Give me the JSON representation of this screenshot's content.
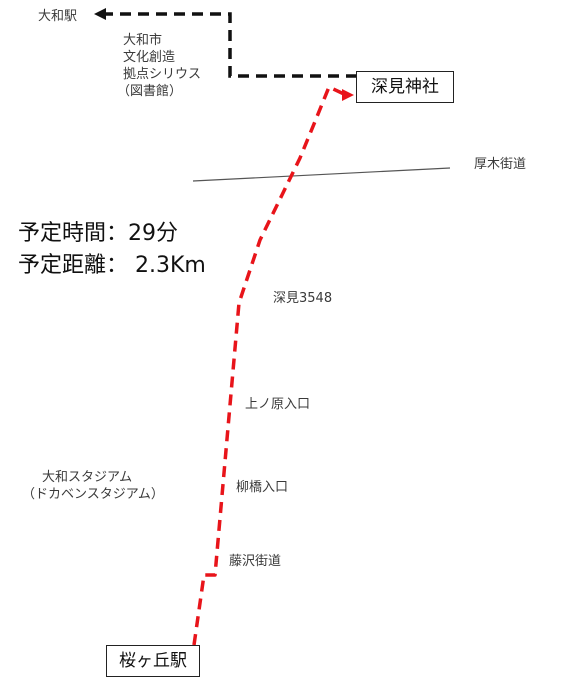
{
  "map": {
    "stations": {
      "yamato": "大和駅",
      "sakuragaoka": "桜ヶ丘駅"
    },
    "destination": "深見神社",
    "facility_lines": [
      "大和市",
      "文化創造",
      "拠点シリウス",
      "（図書館）"
    ],
    "road": "厚木街道",
    "waypoints": {
      "fukami": "深見3548",
      "kaminohara": "上ノ原入口",
      "yanagibashi": "柳橋入口",
      "fujisawa": "藤沢街道"
    },
    "stadium_lines": [
      "大和スタジアム",
      "（ドカベンスタジアム）"
    ],
    "info": {
      "time": "予定時間：29分",
      "distance": "予定距離： 2.3Km"
    },
    "colors": {
      "route": "#e8141a",
      "connector": "#111111",
      "road": "#555555"
    }
  }
}
